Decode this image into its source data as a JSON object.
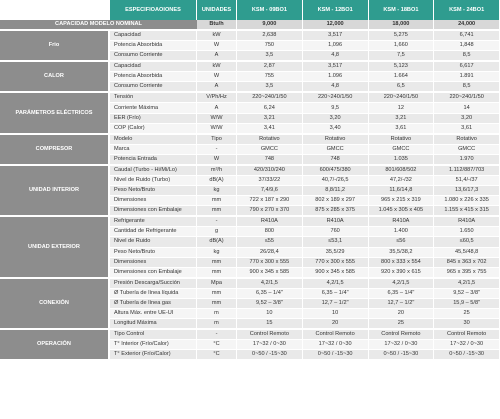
{
  "header": {
    "spec": "ESPECIFIOAOIONES",
    "unit": "UNIDADES",
    "models": [
      "KSM - 09BO1",
      "KSM - 12BO1",
      "KSM - 18BO1",
      "KSM - 24BO1"
    ]
  },
  "nominal": {
    "label": "CAPACIDAD MODELO NOMINAL",
    "unit": "Btu/h",
    "values": [
      "9,000",
      "12,000",
      "18,000",
      "24,000"
    ]
  },
  "groups": [
    {
      "name": "Frio",
      "rows": [
        {
          "spec": "Capacidad",
          "unit": "kW",
          "values": [
            "2,638",
            "3,517",
            "5,275",
            "6,741"
          ]
        },
        {
          "spec": "Potencia Absorbida",
          "unit": "W",
          "values": [
            "750",
            "1,096",
            "1,660",
            "1,848"
          ]
        },
        {
          "spec": "Consumo Corriente",
          "unit": "A",
          "values": [
            "3,5",
            "4,8",
            "7,5",
            "8,5"
          ]
        }
      ]
    },
    {
      "name": "CALOR",
      "rows": [
        {
          "spec": "Capacidad",
          "unit": "kW",
          "values": [
            "2,87",
            "3,517",
            "5,123",
            "6,617"
          ]
        },
        {
          "spec": "Potencia Absorbida",
          "unit": "W",
          "values": [
            "755",
            "1.096",
            "1.664",
            "1.891"
          ]
        },
        {
          "spec": "Consumo Corriente",
          "unit": "A",
          "values": [
            "3,5",
            "4,8",
            "6,5",
            "8,5"
          ]
        }
      ]
    },
    {
      "name": "PARÁMETROS ELÉCTRICOS",
      "rows": [
        {
          "spec": "Tensión",
          "unit": "V/Ph/Hz",
          "values": [
            "220~240/1/50",
            "220~240/1/50",
            "220~240/1/50",
            "220~240/1/50"
          ]
        },
        {
          "spec": "Corriente Máxima",
          "unit": "A",
          "values": [
            "6,24",
            "9,5",
            "12",
            "14"
          ]
        },
        {
          "spec": "EER (Frío)",
          "unit": "W/W",
          "values": [
            "3,21",
            "3,20",
            "3,21",
            "3,20"
          ]
        },
        {
          "spec": "COP (Calor)",
          "unit": "W/W",
          "values": [
            "3,41",
            "3,40",
            "3,61",
            "3,61"
          ]
        }
      ]
    },
    {
      "name": "COMPRESOR",
      "rows": [
        {
          "spec": "Modelo",
          "unit": "Tipo",
          "values": [
            "Rotativo",
            "Rotativo",
            "Rotativo",
            "Rotativo"
          ]
        },
        {
          "spec": "Marca",
          "unit": "-",
          "values": [
            "GMCC",
            "GMCC",
            "GMCC",
            "GMCC"
          ]
        },
        {
          "spec": "Potencia Entrada",
          "unit": "W",
          "values": [
            "748",
            "748",
            "1.035",
            "1.970"
          ]
        }
      ]
    },
    {
      "name": "UNIDAD INTERIOR",
      "rows": [
        {
          "spec": "Caudal (Turbo - Hi/Mi/Lo)",
          "unit": "m³/h",
          "values": [
            "420/310/240",
            "600/475/380",
            "801/608/502",
            "1.112/887/703"
          ]
        },
        {
          "spec": "Nivel de Ruido (Turbo)",
          "unit": "dB(A)",
          "values": [
            "37/33/22",
            "40,7/-/26,5",
            "47,2/-/32",
            "51,4/-/37"
          ]
        },
        {
          "spec": "Peso Neto/Bruto",
          "unit": "kg",
          "values": [
            "7,4/9,6",
            "8,8/11,2",
            "11,6/14,8",
            "13,6/17,3"
          ]
        },
        {
          "spec": "Dimensiones",
          "unit": "mm",
          "values": [
            "722 x 187 x 290",
            "802 x 189 x 297",
            "965 x 215 x 319",
            "1.080 x 226 x 335"
          ]
        },
        {
          "spec": "Dimensiones con Embalaje",
          "unit": "mm",
          "values": [
            "790 x 270 x 370",
            "875 x 285 x 375",
            "1.045 x 305 x 405",
            "1.155 x 415 x 315"
          ]
        }
      ]
    },
    {
      "name": "UNIDAD EXTERIOR",
      "rows": [
        {
          "spec": "Refrigerante",
          "unit": "-",
          "values": [
            "R410A",
            "R410A",
            "R410A",
            "R410A"
          ]
        },
        {
          "spec": "Cantidad de Refrigerante",
          "unit": "g",
          "values": [
            "800",
            "760",
            "1.400",
            "1.650"
          ]
        },
        {
          "spec": "Nivel de Ruido",
          "unit": "dB(A)",
          "values": [
            "≤55",
            "≤53,1",
            "≤56",
            "≤60,5"
          ]
        },
        {
          "spec": "Peso Neto/Bruto",
          "unit": "kg",
          "values": [
            "26/28,4",
            "35,5/29",
            "35,5/38,2",
            "45,5/48,8"
          ]
        },
        {
          "spec": "Dimensiones",
          "unit": "mm",
          "values": [
            "770 x 300 x 555",
            "770 x 300 x 555",
            "800 x 333 x 554",
            "845 x 363 x 702"
          ]
        },
        {
          "spec": "Dimensiones con Embalaje",
          "unit": "mm",
          "values": [
            "900 x 345 x 585",
            "900 x 345 x 585",
            "920 x 390 x 615",
            "965 x 395 x 755"
          ]
        }
      ]
    },
    {
      "name": "CONEXIÓN",
      "rows": [
        {
          "spec": "Presión Descarga/Succión",
          "unit": "Mpa",
          "values": [
            "4,2/1,5",
            "4,2/1,5",
            "4,2/1,5",
            "4,2/1,5"
          ]
        },
        {
          "spec": "Ø Tubería de línea líquida",
          "unit": "mm",
          "values": [
            "6,35 – 1/4\"",
            "6,35 – 1/4\"",
            "6,35 – 1/4\"",
            "9,52 – 3/8\""
          ]
        },
        {
          "spec": "Ø Tubería de línea gas",
          "unit": "mm",
          "values": [
            "9,52 – 3/8\"",
            "12,7 – 1/2\"",
            "12,7 – 1/2\"",
            "15,9 – 5/8\""
          ]
        },
        {
          "spec": "Altura Máx. entre UE-UI",
          "unit": "m",
          "values": [
            "10",
            "10",
            "20",
            "25"
          ]
        },
        {
          "spec": "Longitud Máxima",
          "unit": "m",
          "values": [
            "15",
            "20",
            "25",
            "30"
          ]
        }
      ]
    },
    {
      "name": "OPERACIÓN",
      "rows": [
        {
          "spec": "Tipo Control",
          "unit": "-",
          "values": [
            "Control Remoto",
            "Control Remoto",
            "Control Remoto",
            "Control Remoto"
          ]
        },
        {
          "spec": "T° Interior (Frío/Calor)",
          "unit": "°C",
          "values": [
            "17~32 / 0~30",
            "17~32 / 0~30",
            "17~32 / 0~30",
            "17~32 / 0~30"
          ]
        },
        {
          "spec": "T° Exterior (Frío/Calor)",
          "unit": "°C",
          "values": [
            "0~50 / -15~30",
            "0~50 / -15~30",
            "0~50 / -15~30",
            "0~50 / -15~30"
          ]
        }
      ]
    }
  ]
}
